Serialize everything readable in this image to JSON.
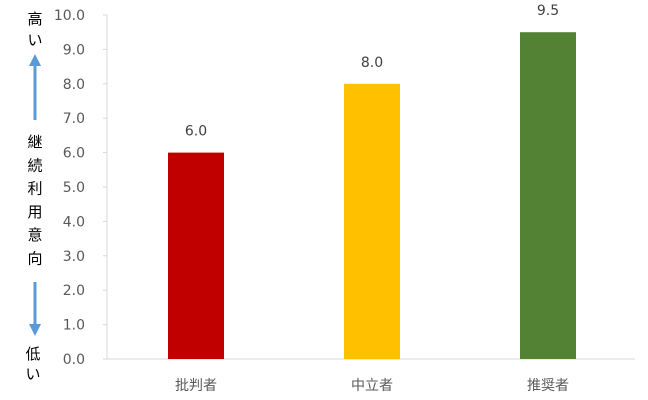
{
  "chart_data": {
    "type": "bar",
    "categories": [
      "批判者",
      "中立者",
      "推奨者"
    ],
    "values": [
      6.0,
      8.0,
      9.5
    ],
    "colors": [
      "#c00000",
      "#ffc000",
      "#548235"
    ],
    "data_labels": [
      "6.0",
      "8.0",
      "9.5"
    ],
    "title": "",
    "xlabel": "",
    "ylabel": {
      "high": "高い",
      "axis": "継続利用意向",
      "low": "低い"
    },
    "ylim": [
      0,
      10
    ],
    "yticks": [
      "0.0",
      "1.0",
      "2.0",
      "3.0",
      "4.0",
      "5.0",
      "6.0",
      "7.0",
      "8.0",
      "9.0",
      "10.0"
    ],
    "grid": false,
    "arrow_color": "#5b9bd5"
  }
}
